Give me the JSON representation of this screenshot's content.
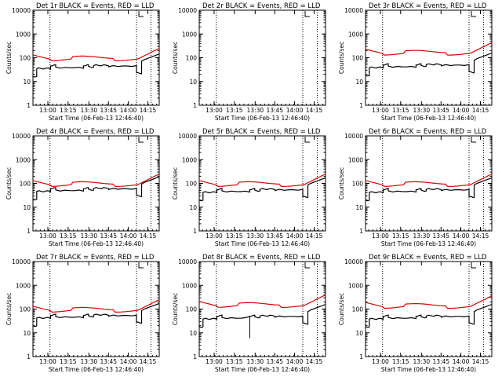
{
  "chart_data": [
    {
      "type": "line",
      "title": "Det 1r BLACK = Events, RED = LLD",
      "ylabel": "Counts/sec",
      "xlabel": "Start Time (06-Feb-13 12:46:40)",
      "y_scale": "log",
      "ylim": [
        1,
        10000
      ],
      "yticks": [
        "1",
        "10",
        "100",
        "1000",
        "10000"
      ],
      "xticks": [
        "13:00",
        "13:15",
        "13:30",
        "13:45",
        "14:00",
        "14:15"
      ],
      "legend": "none",
      "grid": false,
      "series": [
        {
          "name": "Events",
          "color": "#000000",
          "mode": "normal",
          "lvl": 0.42
        },
        {
          "name": "LLD",
          "color": "#e00000",
          "lvl": 0.48
        }
      ]
    },
    {
      "type": "line",
      "title": "Det 2r BLACK = Events, RED = LLD",
      "ylabel": "Counts/sec",
      "xlabel": "Start Time (06-Feb-13 12:46:40)",
      "y_scale": "log",
      "ylim": [
        1,
        10000
      ],
      "yticks": [
        "1",
        "10",
        "100",
        "1000",
        "10000"
      ],
      "xticks": [
        "13:00",
        "13:15",
        "13:30",
        "13:45",
        "14:00",
        "14:15"
      ],
      "legend": "none",
      "grid": false,
      "series": []
    },
    {
      "type": "line",
      "title": "Det 3r BLACK = Events, RED = LLD",
      "ylabel": "Counts/sec",
      "xlabel": "Start Time (06-Feb-13 12:46:40)",
      "y_scale": "log",
      "ylim": [
        1,
        10000
      ],
      "yticks": [
        "1",
        "10",
        "100",
        "1000",
        "10000"
      ],
      "xticks": [
        "13:00",
        "13:15",
        "13:30",
        "13:45",
        "14:00",
        "14:15"
      ],
      "legend": "none",
      "grid": false,
      "series": [
        {
          "name": "Events",
          "color": "#000000",
          "mode": "normal",
          "lvl": 0.43
        },
        {
          "name": "LLD",
          "color": "#e00000",
          "lvl": 0.54
        }
      ]
    },
    {
      "type": "line",
      "title": "Det 4r BLACK = Events, RED = LLD",
      "ylabel": "Counts/sec",
      "xlabel": "Start Time (06-Feb-13 12:46:40)",
      "y_scale": "log",
      "ylim": [
        1,
        10000
      ],
      "yticks": [
        "1",
        "10",
        "100",
        "1000",
        "10000"
      ],
      "xticks": [
        "13:00",
        "13:15",
        "13:30",
        "13:45",
        "14:00",
        "14:15"
      ],
      "legend": "none",
      "grid": false,
      "series": [
        {
          "name": "Events",
          "color": "#000000",
          "mode": "normal",
          "lvl": 0.45
        },
        {
          "name": "LLD",
          "color": "#e00000",
          "lvl": 0.48
        }
      ]
    },
    {
      "type": "line",
      "title": "Det 5r BLACK = Events, RED = LLD",
      "ylabel": "Counts/sec",
      "xlabel": "Start Time (06-Feb-13 12:46:40)",
      "y_scale": "log",
      "ylim": [
        1,
        10000
      ],
      "yticks": [
        "1",
        "10",
        "100",
        "1000",
        "10000"
      ],
      "xticks": [
        "13:00",
        "13:15",
        "13:30",
        "13:45",
        "14:00",
        "14:15"
      ],
      "legend": "none",
      "grid": false,
      "series": [
        {
          "name": "Events",
          "color": "#000000",
          "mode": "normal",
          "lvl": 0.44
        },
        {
          "name": "LLD",
          "color": "#e00000",
          "lvl": 0.48
        }
      ]
    },
    {
      "type": "line",
      "title": "Det 6r BLACK = Events, RED = LLD",
      "ylabel": "Counts/sec",
      "xlabel": "Start Time (06-Feb-13 12:46:40)",
      "y_scale": "log",
      "ylim": [
        1,
        10000
      ],
      "yticks": [
        "1",
        "10",
        "100",
        "1000",
        "10000"
      ],
      "xticks": [
        "13:00",
        "13:15",
        "13:30",
        "13:45",
        "14:00",
        "14:15"
      ],
      "legend": "none",
      "grid": false,
      "series": [
        {
          "name": "Events",
          "color": "#000000",
          "mode": "normal",
          "lvl": 0.44
        },
        {
          "name": "LLD",
          "color": "#e00000",
          "lvl": 0.48
        }
      ]
    },
    {
      "type": "line",
      "title": "Det 7r BLACK = Events, RED = LLD",
      "ylabel": "Counts/sec",
      "xlabel": "Start Time (06-Feb-13 12:46:40)",
      "y_scale": "log",
      "ylim": [
        1,
        10000
      ],
      "yticks": [
        "1",
        "10",
        "100",
        "1000",
        "10000"
      ],
      "xticks": [
        "13:00",
        "13:15",
        "13:30",
        "13:45",
        "14:00",
        "14:15"
      ],
      "legend": "none",
      "grid": false,
      "series": [
        {
          "name": "Events",
          "color": "#000000",
          "mode": "normal",
          "lvl": 0.44
        },
        {
          "name": "LLD",
          "color": "#e00000",
          "lvl": 0.48
        }
      ]
    },
    {
      "type": "line",
      "title": "Det 8r BLACK = Events, RED = LLD",
      "ylabel": "Counts/sec",
      "xlabel": "Start Time (06-Feb-13 12:46:40)",
      "y_scale": "log",
      "ylim": [
        1,
        10000
      ],
      "yticks": [
        "1",
        "10",
        "100",
        "1000",
        "10000"
      ],
      "xticks": [
        "13:00",
        "13:15",
        "13:30",
        "13:45",
        "14:00",
        "14:15"
      ],
      "legend": "none",
      "grid": false,
      "series": [
        {
          "name": "Events",
          "color": "#000000",
          "mode": "det8",
          "lvl": 0.43
        },
        {
          "name": "LLD",
          "color": "#e00000",
          "lvl": 0.53
        }
      ]
    },
    {
      "type": "line",
      "title": "Det 9r BLACK = Events, RED = LLD",
      "ylabel": "Counts/sec",
      "xlabel": "Start Time (06-Feb-13 12:46:40)",
      "y_scale": "log",
      "ylim": [
        1,
        10000
      ],
      "yticks": [
        "1",
        "10",
        "100",
        "1000",
        "10000"
      ],
      "xticks": [
        "13:00",
        "13:15",
        "13:30",
        "13:45",
        "14:00",
        "14:15"
      ],
      "legend": "none",
      "grid": false,
      "series": [
        {
          "name": "Events",
          "color": "#000000",
          "mode": "normal",
          "lvl": 0.43
        },
        {
          "name": "LLD",
          "color": "#e00000",
          "lvl": 0.52
        }
      ]
    }
  ]
}
